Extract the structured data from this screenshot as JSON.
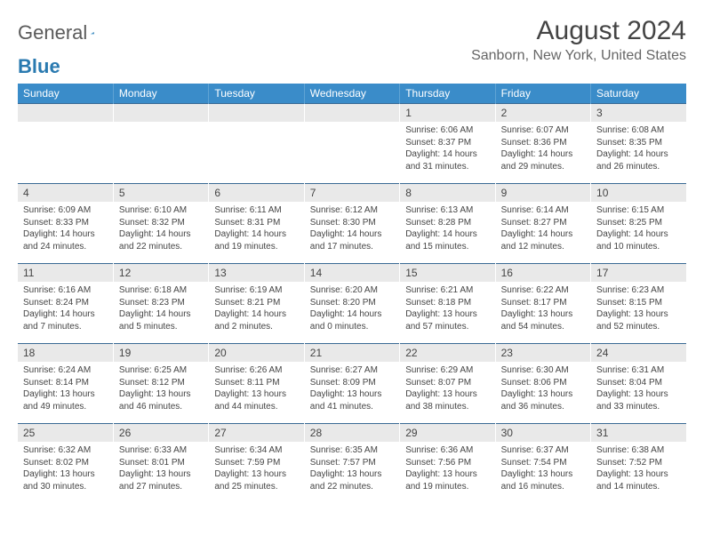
{
  "logo": {
    "word1": "General",
    "word2": "Blue"
  },
  "title": "August 2024",
  "location": "Sanborn, New York, United States",
  "colors": {
    "header_bg": "#3a8cc9",
    "header_text": "#ffffff",
    "row_border": "#3a6a94",
    "daynum_bg": "#e9e9e9",
    "logo_gray": "#5a5a5a",
    "logo_blue": "#2a7ab0"
  },
  "day_headers": [
    "Sunday",
    "Monday",
    "Tuesday",
    "Wednesday",
    "Thursday",
    "Friday",
    "Saturday"
  ],
  "weeks": [
    [
      {
        "blank": true
      },
      {
        "blank": true
      },
      {
        "blank": true
      },
      {
        "blank": true
      },
      {
        "num": "1",
        "sunrise": "6:06 AM",
        "sunset": "8:37 PM",
        "dl_h": "14",
        "dl_m": "31"
      },
      {
        "num": "2",
        "sunrise": "6:07 AM",
        "sunset": "8:36 PM",
        "dl_h": "14",
        "dl_m": "29"
      },
      {
        "num": "3",
        "sunrise": "6:08 AM",
        "sunset": "8:35 PM",
        "dl_h": "14",
        "dl_m": "26"
      }
    ],
    [
      {
        "num": "4",
        "sunrise": "6:09 AM",
        "sunset": "8:33 PM",
        "dl_h": "14",
        "dl_m": "24"
      },
      {
        "num": "5",
        "sunrise": "6:10 AM",
        "sunset": "8:32 PM",
        "dl_h": "14",
        "dl_m": "22"
      },
      {
        "num": "6",
        "sunrise": "6:11 AM",
        "sunset": "8:31 PM",
        "dl_h": "14",
        "dl_m": "19"
      },
      {
        "num": "7",
        "sunrise": "6:12 AM",
        "sunset": "8:30 PM",
        "dl_h": "14",
        "dl_m": "17"
      },
      {
        "num": "8",
        "sunrise": "6:13 AM",
        "sunset": "8:28 PM",
        "dl_h": "14",
        "dl_m": "15"
      },
      {
        "num": "9",
        "sunrise": "6:14 AM",
        "sunset": "8:27 PM",
        "dl_h": "14",
        "dl_m": "12"
      },
      {
        "num": "10",
        "sunrise": "6:15 AM",
        "sunset": "8:25 PM",
        "dl_h": "14",
        "dl_m": "10"
      }
    ],
    [
      {
        "num": "11",
        "sunrise": "6:16 AM",
        "sunset": "8:24 PM",
        "dl_h": "14",
        "dl_m": "7"
      },
      {
        "num": "12",
        "sunrise": "6:18 AM",
        "sunset": "8:23 PM",
        "dl_h": "14",
        "dl_m": "5"
      },
      {
        "num": "13",
        "sunrise": "6:19 AM",
        "sunset": "8:21 PM",
        "dl_h": "14",
        "dl_m": "2"
      },
      {
        "num": "14",
        "sunrise": "6:20 AM",
        "sunset": "8:20 PM",
        "dl_h": "14",
        "dl_m": "0"
      },
      {
        "num": "15",
        "sunrise": "6:21 AM",
        "sunset": "8:18 PM",
        "dl_h": "13",
        "dl_m": "57"
      },
      {
        "num": "16",
        "sunrise": "6:22 AM",
        "sunset": "8:17 PM",
        "dl_h": "13",
        "dl_m": "54"
      },
      {
        "num": "17",
        "sunrise": "6:23 AM",
        "sunset": "8:15 PM",
        "dl_h": "13",
        "dl_m": "52"
      }
    ],
    [
      {
        "num": "18",
        "sunrise": "6:24 AM",
        "sunset": "8:14 PM",
        "dl_h": "13",
        "dl_m": "49"
      },
      {
        "num": "19",
        "sunrise": "6:25 AM",
        "sunset": "8:12 PM",
        "dl_h": "13",
        "dl_m": "46"
      },
      {
        "num": "20",
        "sunrise": "6:26 AM",
        "sunset": "8:11 PM",
        "dl_h": "13",
        "dl_m": "44"
      },
      {
        "num": "21",
        "sunrise": "6:27 AM",
        "sunset": "8:09 PM",
        "dl_h": "13",
        "dl_m": "41"
      },
      {
        "num": "22",
        "sunrise": "6:29 AM",
        "sunset": "8:07 PM",
        "dl_h": "13",
        "dl_m": "38"
      },
      {
        "num": "23",
        "sunrise": "6:30 AM",
        "sunset": "8:06 PM",
        "dl_h": "13",
        "dl_m": "36"
      },
      {
        "num": "24",
        "sunrise": "6:31 AM",
        "sunset": "8:04 PM",
        "dl_h": "13",
        "dl_m": "33"
      }
    ],
    [
      {
        "num": "25",
        "sunrise": "6:32 AM",
        "sunset": "8:02 PM",
        "dl_h": "13",
        "dl_m": "30"
      },
      {
        "num": "26",
        "sunrise": "6:33 AM",
        "sunset": "8:01 PM",
        "dl_h": "13",
        "dl_m": "27"
      },
      {
        "num": "27",
        "sunrise": "6:34 AM",
        "sunset": "7:59 PM",
        "dl_h": "13",
        "dl_m": "25"
      },
      {
        "num": "28",
        "sunrise": "6:35 AM",
        "sunset": "7:57 PM",
        "dl_h": "13",
        "dl_m": "22"
      },
      {
        "num": "29",
        "sunrise": "6:36 AM",
        "sunset": "7:56 PM",
        "dl_h": "13",
        "dl_m": "19"
      },
      {
        "num": "30",
        "sunrise": "6:37 AM",
        "sunset": "7:54 PM",
        "dl_h": "13",
        "dl_m": "16"
      },
      {
        "num": "31",
        "sunrise": "6:38 AM",
        "sunset": "7:52 PM",
        "dl_h": "13",
        "dl_m": "14"
      }
    ]
  ]
}
